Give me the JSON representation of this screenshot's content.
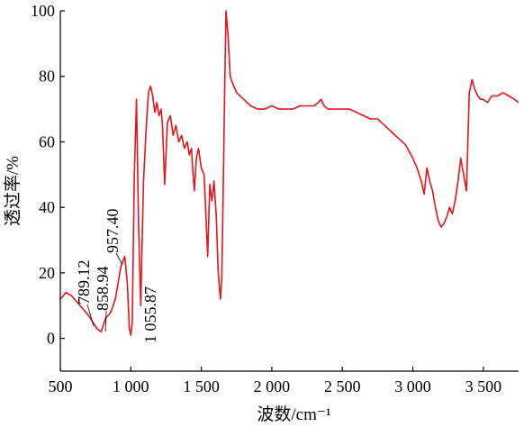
{
  "chart_data": {
    "type": "line",
    "title": "",
    "xlabel": "波数/cm⁻¹",
    "ylabel": "透过率/%",
    "xlim": [
      500,
      3750
    ],
    "ylim": [
      -10,
      100
    ],
    "xticks": [
      500,
      1000,
      1500,
      2000,
      2500,
      3000,
      3500
    ],
    "xtick_labels": [
      "500",
      "1 000",
      "1 500",
      "2 000",
      "2 500",
      "3 000",
      "3 500"
    ],
    "yticks": [
      0,
      20,
      40,
      60,
      80,
      100
    ],
    "ytick_labels": [
      "0",
      "20",
      "40",
      "60",
      "80",
      "100"
    ],
    "grid": false,
    "colors": {
      "series": "#e8141c",
      "axis": "#000000"
    },
    "annotations": [
      {
        "text": "789.12",
        "x": 789.12
      },
      {
        "text": "858.94",
        "x": 858.94
      },
      {
        "text": "957.40",
        "x": 957.4
      },
      {
        "text": "1 055.87",
        "x": 1055.87
      }
    ],
    "series": [
      {
        "x": [
          500,
          540,
          580,
          620,
          660,
          700,
          730,
          760,
          789,
          820,
          858,
          890,
          930,
          957,
          975,
          990,
          1000,
          1010,
          1025,
          1040,
          1055,
          1070,
          1090,
          1110,
          1125,
          1140,
          1155,
          1170,
          1185,
          1200,
          1215,
          1225,
          1240,
          1260,
          1280,
          1300,
          1320,
          1340,
          1360,
          1380,
          1400,
          1415,
          1430,
          1440,
          1450,
          1465,
          1480,
          1500,
          1520,
          1535,
          1545,
          1560,
          1575,
          1590,
          1605,
          1620,
          1635,
          1645,
          1655,
          1665,
          1675,
          1690,
          1705,
          1720,
          1750,
          1800,
          1850,
          1900,
          1950,
          2000,
          2050,
          2100,
          2150,
          2200,
          2250,
          2300,
          2330,
          2350,
          2370,
          2400,
          2450,
          2500,
          2550,
          2600,
          2650,
          2700,
          2750,
          2800,
          2850,
          2900,
          2950,
          3000,
          3030,
          3060,
          3080,
          3100,
          3120,
          3140,
          3160,
          3180,
          3200,
          3220,
          3240,
          3260,
          3280,
          3300,
          3320,
          3340,
          3360,
          3380,
          3400,
          3420,
          3440,
          3460,
          3480,
          3500,
          3530,
          3560,
          3600,
          3640,
          3680,
          3720,
          3750
        ],
        "y": [
          12,
          14,
          13,
          11,
          9,
          7,
          5,
          3,
          2,
          6,
          8,
          12,
          22,
          25,
          17,
          3,
          1,
          5,
          50,
          73,
          35,
          10,
          48,
          65,
          75,
          77,
          74,
          69,
          72,
          68,
          70,
          65,
          47,
          66,
          68,
          62,
          65,
          60,
          62,
          58,
          60,
          56,
          58,
          51,
          45,
          55,
          58,
          52,
          50,
          35,
          25,
          47,
          42,
          48,
          38,
          20,
          12,
          18,
          45,
          75,
          100,
          92,
          80,
          78,
          75,
          73,
          71,
          70,
          70,
          71,
          70,
          70,
          70,
          71,
          71,
          71,
          72,
          73,
          71,
          70,
          70,
          70,
          70,
          69,
          68,
          67,
          67,
          65,
          63,
          61,
          59,
          55,
          52,
          48,
          44,
          52,
          48,
          45,
          40,
          36,
          34,
          35,
          37,
          40,
          38,
          42,
          48,
          55,
          50,
          45,
          75,
          79,
          76,
          74,
          73,
          73,
          72,
          74,
          74,
          75,
          74,
          73,
          72
        ]
      }
    ]
  }
}
